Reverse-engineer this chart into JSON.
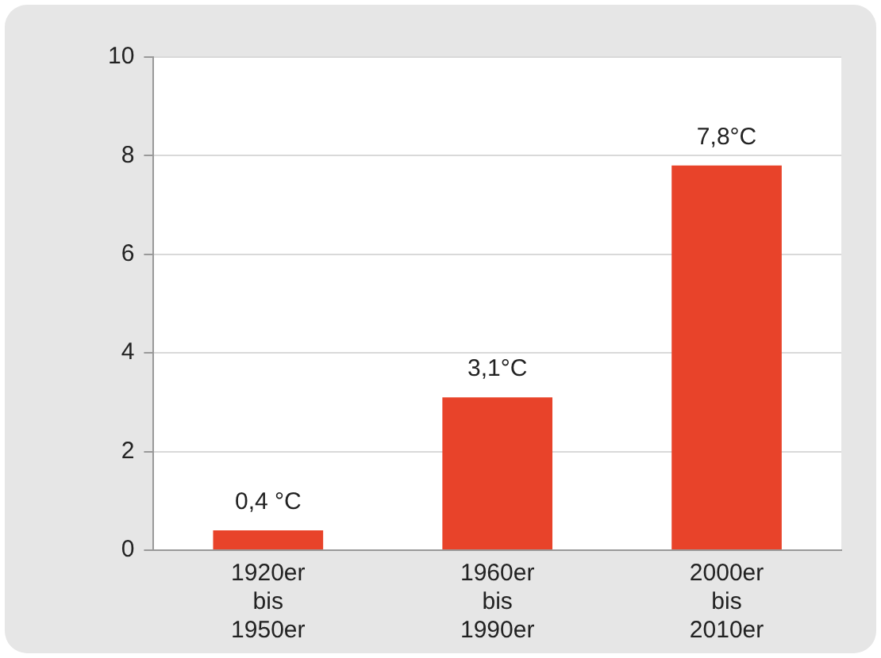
{
  "chart_data": {
    "type": "bar",
    "categories": [
      "1920er bis 1950er",
      "1960er bis 1990er",
      "2000er bis 2010er"
    ],
    "values": [
      0.4,
      3.1,
      7.8
    ],
    "color": "#e8432a",
    "value_labels": [
      "0,4 °C",
      "3,1°C",
      "7,8°C"
    ],
    "ylim": [
      0,
      10
    ],
    "yticks": [
      0,
      2,
      4,
      6,
      8,
      10
    ],
    "grid": "y",
    "legend": false
  }
}
